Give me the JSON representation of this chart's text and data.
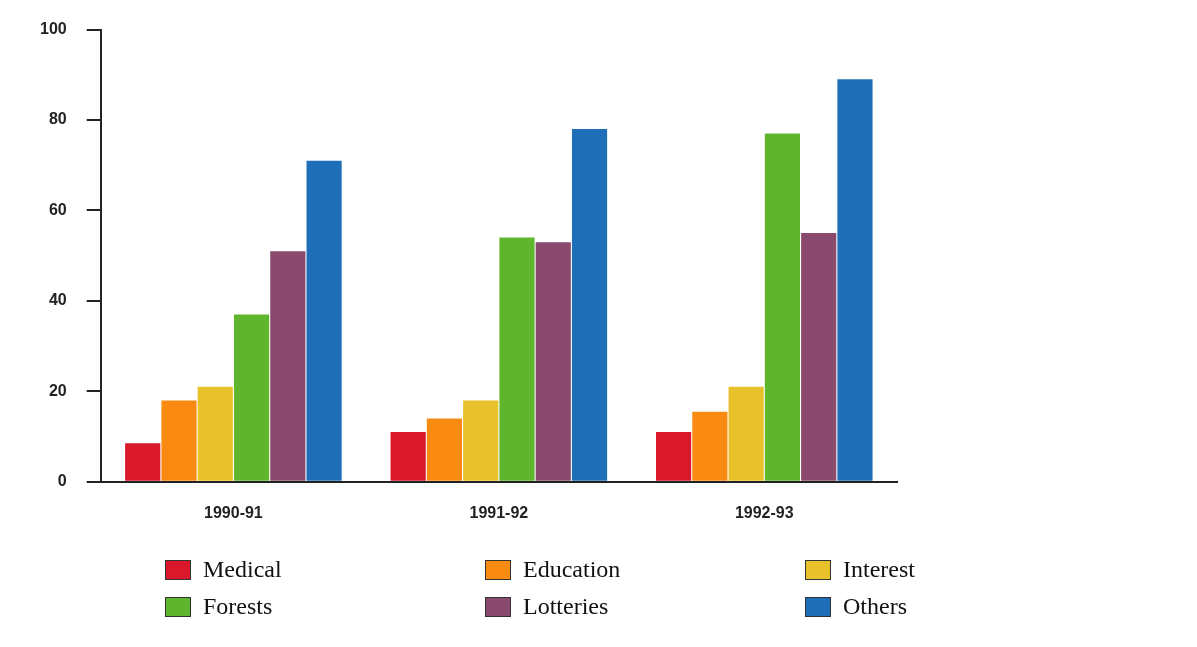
{
  "chart_data": {
    "type": "bar",
    "categories": [
      "1990-91",
      "1991-92",
      "1992-93"
    ],
    "series": [
      {
        "name": "Medical",
        "color": "#d9182b",
        "values": [
          8.5,
          11,
          11
        ]
      },
      {
        "name": "Education",
        "color": "#f98a12",
        "values": [
          18,
          14,
          15.5
        ]
      },
      {
        "name": "Interest",
        "color": "#e8c22a",
        "values": [
          21,
          18,
          21
        ]
      },
      {
        "name": "Forests",
        "color": "#5fb52c",
        "values": [
          37,
          54,
          77
        ]
      },
      {
        "name": "Lotteries",
        "color": "#8a4a6e",
        "values": [
          51,
          53,
          55
        ]
      },
      {
        "name": "Others",
        "color": "#1f6fb8",
        "values": [
          71,
          78,
          89
        ]
      }
    ],
    "ylim": [
      0,
      100
    ],
    "yticks": [
      0,
      20,
      40,
      60,
      80,
      100
    ],
    "grid": false,
    "legend": "bottom"
  }
}
